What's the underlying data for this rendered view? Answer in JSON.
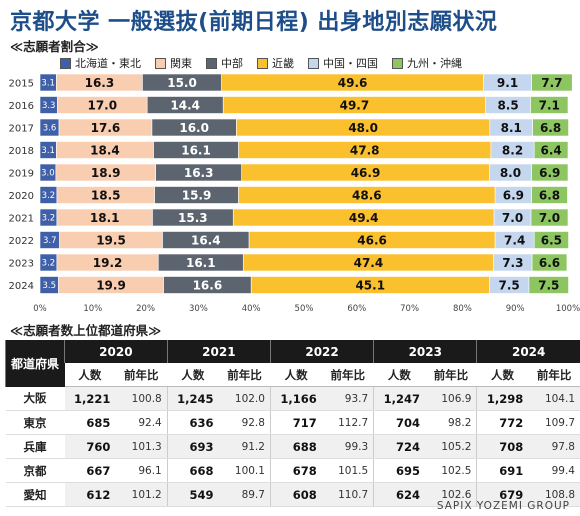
{
  "title": "京都大学 一般選抜(前期日程) 出身地別志願状況",
  "section1_title": "≪志願者割合≫",
  "section2_title": "≪志願者数上位都道府県≫",
  "footer": "SAPIX YOZEMI GROUP",
  "colors": {
    "hokkaido_tohoku": "#3f5fa8",
    "kanto": "#f9cdb0",
    "chubu": "#5c6470",
    "kinki": "#fbc02d",
    "chugoku_shikoku": "#c5d6ef",
    "kyushu_okinawa": "#8dc660"
  },
  "chart_data": {
    "type": "bar",
    "orientation": "horizontal",
    "stacked": true,
    "percent": true,
    "categories": [
      "2015",
      "2016",
      "2017",
      "2018",
      "2019",
      "2020",
      "2021",
      "2022",
      "2023",
      "2024"
    ],
    "series": [
      {
        "name": "北海道・東北",
        "color": "#3f5fa8",
        "label_color": "#ffffff",
        "values": [
          3.1,
          3.3,
          3.6,
          3.1,
          3.0,
          3.2,
          3.2,
          3.7,
          3.2,
          3.5
        ]
      },
      {
        "name": "関東",
        "color": "#f9cdb0",
        "label_color": "#111111",
        "values": [
          16.3,
          17.0,
          17.6,
          18.4,
          18.9,
          18.5,
          18.1,
          19.5,
          19.2,
          19.9
        ]
      },
      {
        "name": "中部",
        "color": "#5c6470",
        "label_color": "#ffffff",
        "values": [
          15.0,
          14.4,
          16.0,
          16.1,
          16.3,
          15.9,
          15.3,
          16.4,
          16.1,
          16.6
        ]
      },
      {
        "name": "近畿",
        "color": "#fbc02d",
        "label_color": "#111111",
        "values": [
          49.6,
          49.7,
          48.0,
          47.8,
          46.9,
          48.6,
          49.4,
          46.6,
          47.4,
          45.1
        ]
      },
      {
        "name": "中国・四国",
        "color": "#c5d6ef",
        "label_color": "#111111",
        "values": [
          9.1,
          8.5,
          8.1,
          8.2,
          8.0,
          6.9,
          7.0,
          7.4,
          7.3,
          7.5
        ]
      },
      {
        "name": "九州・沖縄",
        "color": "#8dc660",
        "label_color": "#111111",
        "values": [
          7.7,
          7.1,
          6.8,
          6.4,
          6.9,
          6.8,
          7.0,
          6.5,
          6.6,
          7.5
        ]
      }
    ],
    "xlim": [
      0,
      100
    ],
    "xticks": [
      "0%",
      "10%",
      "20%",
      "30%",
      "40%",
      "50%",
      "60%",
      "70%",
      "80%",
      "90%",
      "100%"
    ],
    "legend_position": "top",
    "grid": false
  },
  "table": {
    "corner_label": "都道府県",
    "years": [
      "2020",
      "2021",
      "2022",
      "2023",
      "2024"
    ],
    "sub_headers": {
      "count": "人数",
      "ratio": "前年比"
    },
    "rows": [
      {
        "pref": "大阪",
        "cells": [
          [
            "1,221",
            "100.8"
          ],
          [
            "1,245",
            "102.0"
          ],
          [
            "1,166",
            "93.7"
          ],
          [
            "1,247",
            "106.9"
          ],
          [
            "1,298",
            "104.1"
          ]
        ]
      },
      {
        "pref": "東京",
        "cells": [
          [
            "685",
            "92.4"
          ],
          [
            "636",
            "92.8"
          ],
          [
            "717",
            "112.7"
          ],
          [
            "704",
            "98.2"
          ],
          [
            "772",
            "109.7"
          ]
        ]
      },
      {
        "pref": "兵庫",
        "cells": [
          [
            "760",
            "101.3"
          ],
          [
            "693",
            "91.2"
          ],
          [
            "688",
            "99.3"
          ],
          [
            "724",
            "105.2"
          ],
          [
            "708",
            "97.8"
          ]
        ]
      },
      {
        "pref": "京都",
        "cells": [
          [
            "667",
            "96.1"
          ],
          [
            "668",
            "100.1"
          ],
          [
            "678",
            "101.5"
          ],
          [
            "695",
            "102.5"
          ],
          [
            "691",
            "99.4"
          ]
        ]
      },
      {
        "pref": "愛知",
        "cells": [
          [
            "612",
            "101.2"
          ],
          [
            "549",
            "89.7"
          ],
          [
            "608",
            "110.7"
          ],
          [
            "624",
            "102.6"
          ],
          [
            "679",
            "108.8"
          ]
        ]
      }
    ]
  }
}
